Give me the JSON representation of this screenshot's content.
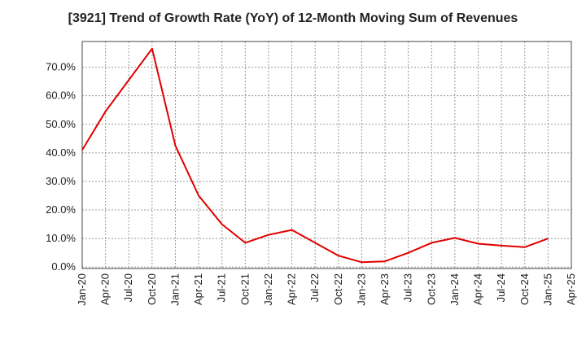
{
  "chart_data": {
    "type": "line",
    "title": "[3921]  Trend of Growth Rate (YoY) of 12-Month Moving Sum of Revenues",
    "xlabel": "",
    "ylabel": "",
    "x_tick_labels": [
      "Jan-20",
      "Apr-20",
      "Jul-20",
      "Oct-20",
      "Jan-21",
      "Apr-21",
      "Jul-21",
      "Oct-21",
      "Jan-22",
      "Apr-22",
      "Jul-22",
      "Oct-22",
      "Jan-23",
      "Apr-23",
      "Jul-23",
      "Oct-23",
      "Jan-24",
      "Apr-24",
      "Jul-24",
      "Oct-24",
      "Jan-25",
      "Apr-25"
    ],
    "y_tick_labels": [
      "0.0%",
      "10.0%",
      "20.0%",
      "30.0%",
      "40.0%",
      "50.0%",
      "60.0%",
      "70.0%"
    ],
    "y_ticks": [
      0,
      10,
      20,
      30,
      40,
      50,
      60,
      70
    ],
    "ylim": [
      -0.5,
      79
    ],
    "grid": true,
    "line_color": "#e00000",
    "series": [
      {
        "x": [
          "Jan-20",
          "Apr-20",
          "Jul-20",
          "Oct-20",
          "Jan-21",
          "Apr-21",
          "Jul-21",
          "Oct-21",
          "Jan-22",
          "Apr-22",
          "Jul-22",
          "Oct-22",
          "Jan-23",
          "Apr-23",
          "Jul-23",
          "Oct-23",
          "Jan-24",
          "Apr-24",
          "Jul-24",
          "Oct-24",
          "Jan-25"
        ],
        "values": [
          41.0,
          54.5,
          65.5,
          76.5,
          42.5,
          25.0,
          15.0,
          8.5,
          11.3,
          13.0,
          8.5,
          4.0,
          1.7,
          2.0,
          5.0,
          8.5,
          10.2,
          8.2,
          7.5,
          7.0,
          10.0
        ]
      }
    ]
  }
}
